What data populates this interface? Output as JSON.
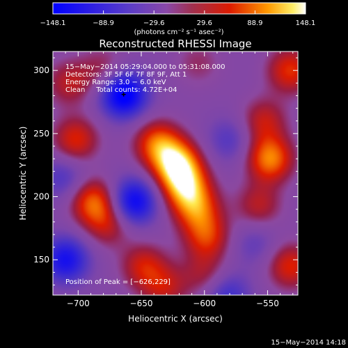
{
  "chart_data": {
    "type": "heatmap",
    "title": "Reconstructed RHESSI Image",
    "xlabel": "Heliocentric X (arcsec)",
    "ylabel": "Heliocentric Y (arcsec)",
    "xlim": [
      -720,
      -526
    ],
    "ylim": [
      122,
      315
    ],
    "x_ticks": [
      -700,
      -650,
      -600,
      -550
    ],
    "x_tick_labels": [
      "−700",
      "−650",
      "−600",
      "−550"
    ],
    "y_ticks": [
      150,
      200,
      250,
      300
    ],
    "y_tick_labels": [
      "150",
      "200",
      "250",
      "300"
    ],
    "colorbar": {
      "min": -148.1,
      "max": 148.1,
      "tick_labels": [
        "−148.1",
        "−88.9",
        "−29.6",
        "29.6",
        "88.9",
        "148.1"
      ],
      "units_label": "(photons cm⁻² s⁻¹ asec⁻²)",
      "colormap": [
        "#0000ff",
        "#8a48a8",
        "#dc1b00",
        "#ffffff"
      ]
    },
    "annotations": [
      "15−May−2014 05:29:04.000 to 05:31:08.000",
      "Detectors: 3F 5F 6F 7F 8F 9F, Att 1",
      "Energy Range: 3.0 − 6.0 keV",
      "Clean     Total counts: 4.72E+04"
    ],
    "peak_label": "Position of Peak = [−626,229]",
    "peak_position": [
      -626,
      229
    ],
    "blobs": [
      {
        "x": -622,
        "y": 226,
        "value": 135
      },
      {
        "x": -637,
        "y": 242,
        "value": 95
      },
      {
        "x": -615,
        "y": 208,
        "value": 110
      },
      {
        "x": -606,
        "y": 190,
        "value": 85
      },
      {
        "x": -598,
        "y": 168,
        "value": 75
      },
      {
        "x": -548,
        "y": 230,
        "value": 110
      },
      {
        "x": -553,
        "y": 260,
        "value": 60
      },
      {
        "x": -557,
        "y": 193,
        "value": 55
      },
      {
        "x": -688,
        "y": 196,
        "value": 95
      },
      {
        "x": -676,
        "y": 178,
        "value": 55
      },
      {
        "x": -702,
        "y": 245,
        "value": 75
      },
      {
        "x": -707,
        "y": 290,
        "value": 55
      },
      {
        "x": -680,
        "y": 301,
        "value": 40
      },
      {
        "x": -648,
        "y": 145,
        "value": 65
      },
      {
        "x": -632,
        "y": 128,
        "value": 55
      },
      {
        "x": -600,
        "y": 138,
        "value": 45
      },
      {
        "x": -532,
        "y": 300,
        "value": 80
      },
      {
        "x": -532,
        "y": 145,
        "value": 75
      },
      {
        "x": -605,
        "y": 306,
        "value": 30
      },
      {
        "x": -664,
        "y": 281,
        "value": -148
      },
      {
        "x": -656,
        "y": 196,
        "value": -125
      },
      {
        "x": -710,
        "y": 150,
        "value": -110
      },
      {
        "x": -582,
        "y": 122,
        "value": -70
      },
      {
        "x": -580,
        "y": 245,
        "value": -50
      },
      {
        "x": -712,
        "y": 215,
        "value": -55
      },
      {
        "x": -560,
        "y": 163,
        "value": -40
      }
    ]
  },
  "footer_timestamp": "15−May−2014 14:18"
}
